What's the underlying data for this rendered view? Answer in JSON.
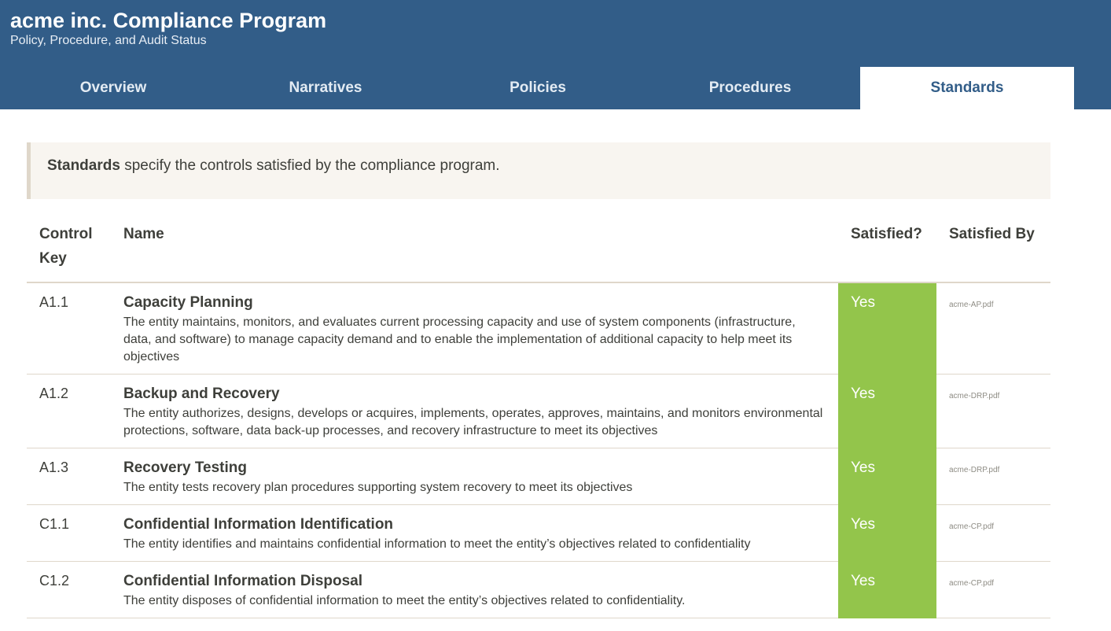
{
  "header": {
    "title": "acme inc. Compliance Program",
    "subtitle": "Policy, Procedure, and Audit Status"
  },
  "tabs": [
    {
      "label": "Overview"
    },
    {
      "label": "Narratives"
    },
    {
      "label": "Policies"
    },
    {
      "label": "Procedures"
    },
    {
      "label": "Standards",
      "active": true
    }
  ],
  "callout": {
    "bold": "Standards",
    "text": " specify the controls satisfied by the compliance program."
  },
  "table": {
    "headers": [
      "Control Key",
      "Name",
      "Satisfied?",
      "Satisfied By"
    ],
    "rows": [
      {
        "key": "A1.1",
        "name": "Capacity Planning",
        "desc": "The entity maintains, monitors, and evaluates current processing capacity and use of system components (infrastructure, data, and software) to manage capacity demand and to enable the implementation of additional capacity to help meet its objectives",
        "satisfied": "Yes",
        "by": "acme-AP.pdf"
      },
      {
        "key": "A1.2",
        "name": "Backup and Recovery",
        "desc": "The entity authorizes, designs, develops or acquires, implements, operates, approves, maintains, and monitors environmental protections, software, data back-up processes, and recovery infrastructure to meet its objectives",
        "satisfied": "Yes",
        "by": "acme-DRP.pdf"
      },
      {
        "key": "A1.3",
        "name": "Recovery Testing",
        "desc": "The entity tests recovery plan procedures supporting system recovery to meet its objectives",
        "satisfied": "Yes",
        "by": "acme-DRP.pdf"
      },
      {
        "key": "C1.1",
        "name": "Confidential Information Identification",
        "desc": "The entity identifies and maintains confidential information to meet the entity’s objectives related to confidentiality",
        "satisfied": "Yes",
        "by": "acme-CP.pdf"
      },
      {
        "key": "C1.2",
        "name": "Confidential Information Disposal",
        "desc": "The entity disposes of confidential information to meet the entity’s objectives related to confidentiality.",
        "satisfied": "Yes",
        "by": "acme-CP.pdf"
      }
    ]
  },
  "colors": {
    "header": "#325d88",
    "satisfied": "#93c54b",
    "callout": "#f8f5f0"
  }
}
